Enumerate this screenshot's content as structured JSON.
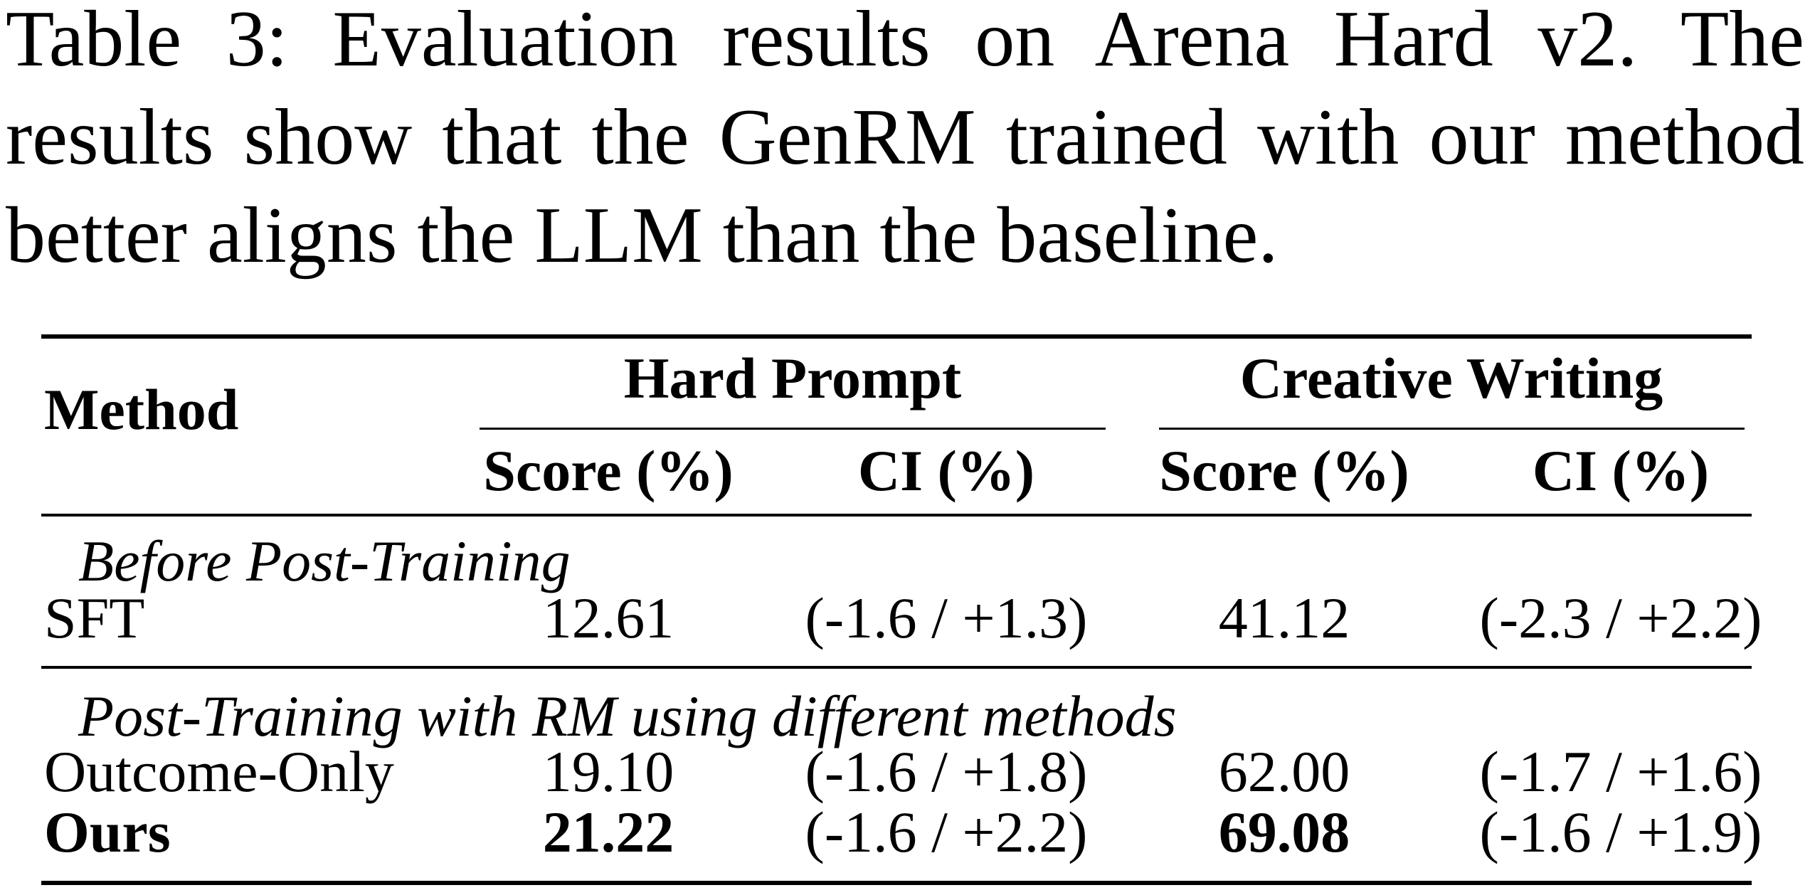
{
  "caption": {
    "lines": [
      "Table 3: Evaluation results on Arena Hard v2. The",
      "results show that the GenRM trained with our method",
      "better aligns the LLM than the baseline."
    ]
  },
  "table": {
    "header": {
      "method": "Method",
      "group1": "Hard Prompt",
      "group2": "Creative Writing",
      "sub": [
        "Score (%)",
        "CI (%)",
        "Score (%)",
        "CI (%)"
      ]
    },
    "section1": {
      "title": "Before Post-Training",
      "rows": [
        {
          "method": "SFT",
          "hp_score": "12.61",
          "hp_ci": "(-1.6 / +1.3)",
          "cw_score": "41.12",
          "cw_ci": "(-2.3 / +2.2)"
        }
      ]
    },
    "section2": {
      "title": "Post-Training with RM using different methods",
      "rows": [
        {
          "method": "Outcome-Only",
          "hp_score": "19.10",
          "hp_ci": "(-1.6 / +1.8)",
          "cw_score": "62.00",
          "cw_ci": "(-1.7 / +1.6)"
        },
        {
          "method": "Ours",
          "hp_score": "21.22",
          "hp_ci": "(-1.6 / +2.2)",
          "cw_score": "69.08",
          "cw_ci": "(-1.6 / +1.9)"
        }
      ]
    }
  }
}
